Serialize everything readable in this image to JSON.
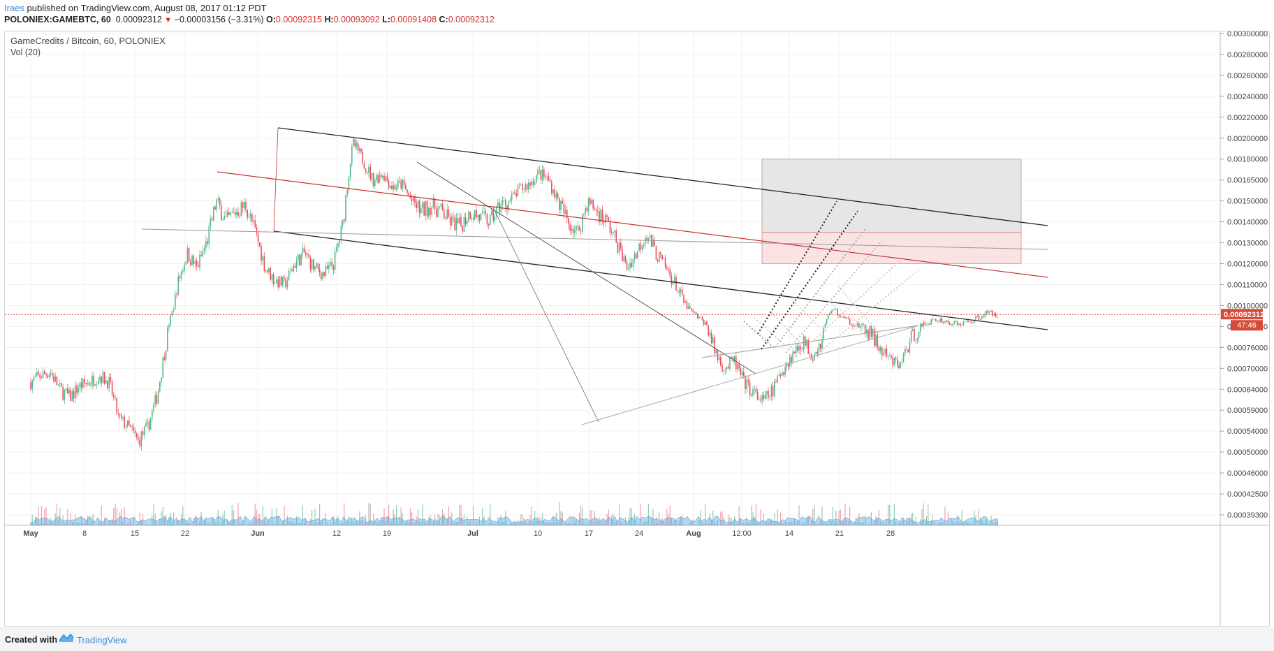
{
  "header": {
    "author": "Iraes",
    "published_text": " published on TradingView.com, August 08, 2017 01:12 PDT",
    "symbol": "POLONIEX:GAMEBTC, 60",
    "last": "0.00092312",
    "change_arrow": "▼",
    "change": "−0.00003156 (−3.31%)",
    "o_label": "O:",
    "o_value": "0.00092315",
    "h_label": "H:",
    "h_value": "0.00093092",
    "l_label": "L:",
    "l_value": "0.00091408",
    "c_label": "C:",
    "c_value": "0.00092312"
  },
  "legend": {
    "title": "GameCredits / Bitcoin, 60, POLONIEX",
    "volume": "Vol (20)"
  },
  "footer": {
    "created_with": "Created with",
    "brand": "TradingView",
    "logo_icon": "tradingview-logo-icon"
  },
  "colors": {
    "up": "#53b987",
    "down": "#eb4d5c",
    "wick": "#555555",
    "volume_up": "#8fd0b3",
    "volume_down": "#f2a1a8",
    "volume_area": "#5aa9e0",
    "trendline": "#222222",
    "red_line": "#c83232",
    "price_label_bg": "#d84a38",
    "target_box": "#e6e6e6",
    "entry_box": "#fbe3e3"
  },
  "chart_data": {
    "type": "candlestick",
    "timeframe": "60",
    "last_price_label": "0.00092312",
    "countdown_label": "47:46",
    "y_ticks": [
      "0.00300000",
      "0.00280000",
      "0.00260000",
      "0.00240000",
      "0.00220000",
      "0.00200000",
      "0.00180000",
      "0.00165000",
      "0.00150000",
      "0.00140000",
      "0.00130000",
      "0.00120000",
      "0.00110000",
      "0.00100000",
      "0.00082000",
      "0.00076000",
      "0.00070000",
      "0.00064000",
      "0.00059000",
      "0.00054000",
      "0.00050000",
      "0.00046000",
      "0.00042500",
      "0.00039300"
    ],
    "x_ticks": [
      "May",
      "8",
      "15",
      "22",
      "Jun",
      "12",
      "19",
      "Jul",
      "10",
      "17",
      "24",
      "Aug",
      "12:00",
      "14",
      "21",
      "28"
    ],
    "price_path": [
      [
        "2017-05-01",
        0.00066
      ],
      [
        "2017-05-02",
        0.00068
      ],
      [
        "2017-05-03",
        0.00069
      ],
      [
        "2017-05-04",
        0.00064
      ],
      [
        "2017-05-05",
        0.00062
      ],
      [
        "2017-05-06",
        0.00065
      ],
      [
        "2017-05-07",
        0.00066
      ],
      [
        "2017-05-08",
        0.00068
      ],
      [
        "2017-05-09",
        0.00066
      ],
      [
        "2017-05-10",
        0.00057
      ],
      [
        "2017-05-11",
        0.00055
      ],
      [
        "2017-05-12",
        0.00052
      ],
      [
        "2017-05-13",
        0.00055
      ],
      [
        "2017-05-14",
        0.00063
      ],
      [
        "2017-05-15",
        0.0008
      ],
      [
        "2017-05-16",
        0.0011
      ],
      [
        "2017-05-17",
        0.00125
      ],
      [
        "2017-05-18",
        0.00118
      ],
      [
        "2017-05-19",
        0.0013
      ],
      [
        "2017-05-20",
        0.0015
      ],
      [
        "2017-05-21",
        0.0014
      ],
      [
        "2017-05-22",
        0.00145
      ],
      [
        "2017-05-23",
        0.00148
      ],
      [
        "2017-05-24",
        0.00135
      ],
      [
        "2017-05-25",
        0.00118
      ],
      [
        "2017-05-26",
        0.00112
      ],
      [
        "2017-05-27",
        0.0011
      ],
      [
        "2017-05-28",
        0.0012
      ],
      [
        "2017-05-29",
        0.00125
      ],
      [
        "2017-05-30",
        0.00118
      ],
      [
        "2017-05-31",
        0.00115
      ],
      [
        "2017-06-01",
        0.0012
      ],
      [
        "2017-06-02",
        0.0014
      ],
      [
        "2017-06-03",
        0.00195
      ],
      [
        "2017-06-04",
        0.0018
      ],
      [
        "2017-06-05",
        0.00165
      ],
      [
        "2017-06-06",
        0.0017
      ],
      [
        "2017-06-07",
        0.0016
      ],
      [
        "2017-06-08",
        0.00162
      ],
      [
        "2017-06-09",
        0.0015
      ],
      [
        "2017-06-10",
        0.00145
      ],
      [
        "2017-06-11",
        0.00148
      ],
      [
        "2017-06-12",
        0.00145
      ],
      [
        "2017-06-13",
        0.0014
      ],
      [
        "2017-06-14",
        0.00138
      ],
      [
        "2017-06-15",
        0.00145
      ],
      [
        "2017-06-16",
        0.00142
      ],
      [
        "2017-06-17",
        0.0014
      ],
      [
        "2017-06-18",
        0.00148
      ],
      [
        "2017-06-19",
        0.0015
      ],
      [
        "2017-06-20",
        0.00158
      ],
      [
        "2017-06-21",
        0.00162
      ],
      [
        "2017-06-22",
        0.0017
      ],
      [
        "2017-06-23",
        0.00165
      ],
      [
        "2017-06-24",
        0.0015
      ],
      [
        "2017-06-25",
        0.0014
      ],
      [
        "2017-06-26",
        0.00135
      ],
      [
        "2017-06-27",
        0.0015
      ],
      [
        "2017-06-28",
        0.00145
      ],
      [
        "2017-06-29",
        0.0014
      ],
      [
        "2017-06-30",
        0.0013
      ],
      [
        "2017-07-01",
        0.00118
      ],
      [
        "2017-07-02",
        0.00125
      ],
      [
        "2017-07-03",
        0.00135
      ],
      [
        "2017-07-04",
        0.00125
      ],
      [
        "2017-07-05",
        0.00118
      ],
      [
        "2017-07-06",
        0.0011
      ],
      [
        "2017-07-07",
        0.001
      ],
      [
        "2017-07-08",
        0.00092
      ],
      [
        "2017-07-09",
        0.00085
      ],
      [
        "2017-07-10",
        0.00075
      ],
      [
        "2017-07-11",
        0.0007
      ],
      [
        "2017-07-12",
        0.00072
      ],
      [
        "2017-07-13",
        0.00066
      ],
      [
        "2017-07-14",
        0.00063
      ],
      [
        "2017-07-15",
        0.00061
      ],
      [
        "2017-07-16",
        0.00064
      ],
      [
        "2017-07-17",
        0.0007
      ],
      [
        "2017-07-18",
        0.00074
      ],
      [
        "2017-07-19",
        0.00078
      ],
      [
        "2017-07-20",
        0.00074
      ],
      [
        "2017-07-21",
        0.00078
      ],
      [
        "2017-07-22",
        0.00098
      ],
      [
        "2017-07-23",
        0.0009
      ],
      [
        "2017-07-24",
        0.00085
      ],
      [
        "2017-07-25",
        0.00082
      ],
      [
        "2017-07-26",
        0.0008
      ],
      [
        "2017-07-27",
        0.00075
      ],
      [
        "2017-07-28",
        0.00072
      ],
      [
        "2017-07-29",
        0.00071
      ],
      [
        "2017-07-30",
        0.00078
      ],
      [
        "2017-07-31",
        0.00082
      ],
      [
        "2017-08-01",
        0.00086
      ],
      [
        "2017-08-02",
        0.00088
      ],
      [
        "2017-08-03",
        0.00085
      ],
      [
        "2017-08-04",
        0.00084
      ],
      [
        "2017-08-05",
        0.00086
      ],
      [
        "2017-08-06",
        0.0009
      ],
      [
        "2017-08-07",
        0.00094
      ],
      [
        "2017-08-08",
        0.00092312
      ]
    ]
  }
}
